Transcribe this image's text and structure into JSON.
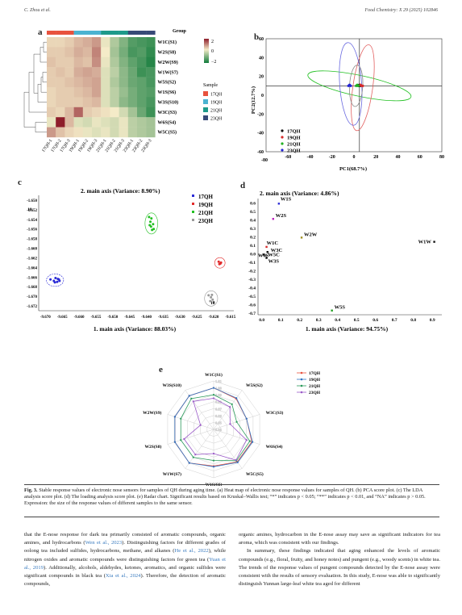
{
  "header": {
    "left": "C. Zhou et al.",
    "right": "Food Chemistry: X 29 (2025) 102846"
  },
  "panels": {
    "a": "a",
    "b": "b",
    "c": "c",
    "d": "d",
    "e": "e"
  },
  "heatmap": {
    "rows": [
      "W1C(S1)",
      "W2S(S8)",
      "W2W(S9)",
      "W1W(S7)",
      "W5S(S2)",
      "W1S(S6)",
      "W3S(S10)",
      "W3C(S3)",
      "W6S(S4)",
      "W5C(S5)"
    ],
    "cols": [
      "17QH-1",
      "17QH-2",
      "17QH-3",
      "19QH-1",
      "19QH-2",
      "19QH-3",
      "21QH-1",
      "21QH-2",
      "21QH-3",
      "23QH-1",
      "23QH-2",
      "23QH-3"
    ],
    "values": [
      [
        0.2,
        0.2,
        0.3,
        0.5,
        0.6,
        0.8,
        -0.1,
        -0.6,
        -1.0,
        -1.4,
        -1.5,
        -1.6
      ],
      [
        0.3,
        0.3,
        0.4,
        0.6,
        0.5,
        1.0,
        0.0,
        -0.7,
        -1.1,
        -1.5,
        -1.4,
        -1.7
      ],
      [
        0.4,
        0.3,
        0.3,
        0.5,
        0.4,
        0.9,
        -0.1,
        -0.6,
        -1.0,
        -1.3,
        -1.5,
        -1.8
      ],
      [
        0.3,
        0.4,
        0.3,
        0.6,
        0.7,
        0.6,
        -0.2,
        -0.5,
        -0.9,
        -1.2,
        -1.6,
        -1.5
      ],
      [
        0.3,
        0.3,
        0.4,
        0.5,
        0.6,
        0.7,
        -0.2,
        -0.6,
        -0.9,
        -1.2,
        -1.3,
        -1.5
      ],
      [
        0.2,
        0.3,
        0.3,
        0.4,
        0.5,
        0.7,
        -0.2,
        -0.5,
        -0.8,
        -1.1,
        -1.3,
        -1.4
      ],
      [
        0.2,
        0.3,
        0.3,
        0.3,
        0.4,
        0.5,
        -0.2,
        -0.5,
        -0.9,
        -1.1,
        -1.3,
        -1.5
      ],
      [
        0.3,
        0.2,
        0.5,
        1.3,
        0.3,
        0.2,
        0.1,
        0.0,
        -0.3,
        -0.7,
        -1.2,
        -1.6
      ],
      [
        -0.1,
        2.0,
        0.5,
        -0.2,
        -0.3,
        -0.1,
        -0.2,
        -0.3,
        -0.1,
        -0.5,
        -0.6,
        -0.7
      ],
      [
        0.8,
        0.4,
        0.2,
        0.1,
        -0.1,
        -0.2,
        -0.1,
        -0.3,
        -0.1,
        -0.5,
        -0.6,
        -0.7
      ]
    ],
    "group_label": "Group",
    "scale_labels": [
      "2",
      "0",
      "−2"
    ],
    "sample_label": "Sample",
    "legend": [
      {
        "name": "17QH",
        "color": "#e8523e"
      },
      {
        "name": "19QH",
        "color": "#4bb3d1"
      },
      {
        "name": "21QH",
        "color": "#1e9a8a"
      },
      {
        "name": "23QH",
        "color": "#384a77"
      }
    ]
  },
  "chart_data": [
    {
      "type": "scatter",
      "panel": "b",
      "xlabel": "PC1(68.7%)",
      "ylabel": "PC2(12.7%)",
      "xlim": [
        -80,
        80
      ],
      "ylim": [
        -60,
        60
      ],
      "xticks": [
        "-60",
        "-40",
        "-20",
        "0",
        "20",
        "40",
        "60",
        "80"
      ],
      "yticks": [
        "60",
        "40",
        "20",
        "0",
        "-20",
        "-40",
        "-60"
      ],
      "series": [
        {
          "name": "17QH",
          "color": "#111111",
          "points": [
            [
              4,
              10
            ],
            [
              5,
              11
            ],
            [
              6,
              10
            ]
          ]
        },
        {
          "name": "19QH",
          "color": "#d62a2a",
          "points": [
            [
              6,
              11
            ],
            [
              7,
              10
            ],
            [
              8,
              10
            ]
          ]
        },
        {
          "name": "21QH",
          "color": "#22b022",
          "points": [
            [
              2,
              10
            ],
            [
              3,
              11
            ],
            [
              4,
              10
            ]
          ]
        },
        {
          "name": "23QH",
          "color": "#2424d6",
          "points": [
            [
              -5,
              10
            ],
            [
              -4,
              11
            ],
            [
              -3,
              10
            ]
          ]
        }
      ]
    },
    {
      "type": "scatter",
      "panel": "c",
      "title": "2. main axis (Variance: 8.90%)",
      "xlabel": "1. main axis (Variance: 88.03%)",
      "xlim": [
        -9.672,
        -9.614
      ],
      "ylim": [
        -1.673,
        -1.649
      ],
      "xticks": [
        "-9.670",
        "-9.665",
        "-9.660",
        "-9.655",
        "-9.650",
        "-9.645",
        "-9.640",
        "-9.635",
        "-9.630",
        "-9.625",
        "-9.620",
        "-9.615"
      ],
      "yticks": [
        "-1.650",
        "-1.652",
        "-1.654",
        "-1.656",
        "-1.658",
        "-1.660",
        "-1.662",
        "-1.664",
        "-1.666",
        "-1.668",
        "-1.670",
        "-1.672"
      ],
      "y_exp": "10",
      "x_exp": "10",
      "series": [
        {
          "name": "17QH",
          "color": "#2a2ad6",
          "points": [
            [
              -9.6685,
              -1.6665
            ],
            [
              -9.6675,
              -1.6668
            ],
            [
              -9.667,
              -1.6662
            ],
            [
              -9.6665,
              -1.667
            ],
            [
              -9.666,
              -1.6665
            ],
            [
              -9.6658,
              -1.6668
            ],
            [
              -9.6672,
              -1.6671
            ],
            [
              -9.6663,
              -1.6664
            ]
          ]
        },
        {
          "name": "19QH",
          "color": "#e22a2a",
          "points": [
            [
              -9.6185,
              -1.6628
            ],
            [
              -9.618,
              -1.6632
            ],
            [
              -9.6178,
              -1.663
            ],
            [
              -9.6183,
              -1.6633
            ]
          ]
        },
        {
          "name": "21QH",
          "color": "#22c022",
          "points": [
            [
              -9.6392,
              -1.6535
            ],
            [
              -9.6385,
              -1.6538
            ],
            [
              -9.6388,
              -1.6545
            ],
            [
              -9.638,
              -1.655
            ],
            [
              -9.6386,
              -1.6555
            ],
            [
              -9.6378,
              -1.656
            ],
            [
              -9.6383,
              -1.6562
            ],
            [
              -9.639,
              -1.6552
            ]
          ]
        },
        {
          "name": "23QH",
          "color": "#999999",
          "points": [
            [
              -9.6215,
              -1.6698
            ],
            [
              -9.6208,
              -1.6702
            ],
            [
              -9.6203,
              -1.6707
            ],
            [
              -9.621,
              -1.671
            ],
            [
              -9.62,
              -1.6712
            ],
            [
              -9.6205,
              -1.6697
            ]
          ]
        }
      ]
    },
    {
      "type": "scatter",
      "panel": "d",
      "title": "2. main axis (Variance: 4.86%)",
      "xlabel": "1. main axis (Variance: 94.75%)",
      "xlim": [
        -0.02,
        0.95
      ],
      "ylim": [
        -0.72,
        0.65
      ],
      "xticks": [
        "0.0",
        "0.1",
        "0.2",
        "0.3",
        "0.4",
        "0.5",
        "0.6",
        "0.7",
        "0.8",
        "0.9"
      ],
      "yticks": [
        "0.6",
        "0.5",
        "0.4",
        "0.3",
        "0.2",
        "0.1",
        "0.0",
        "-0.1",
        "-0.2",
        "-0.3",
        "-0.4",
        "-0.5",
        "-0.6",
        "-0.7"
      ],
      "points": [
        {
          "label": "W1S",
          "x": 0.09,
          "y": 0.59,
          "color": "#2a2ad6"
        },
        {
          "label": "W2S",
          "x": 0.06,
          "y": 0.41,
          "color": "#c020c0"
        },
        {
          "label": "W2W",
          "x": 0.21,
          "y": 0.19,
          "color": "#a09020"
        },
        {
          "label": "W1W",
          "x": 0.91,
          "y": 0.14,
          "color": "#111111"
        },
        {
          "label": "W1C",
          "x": 0.025,
          "y": 0.08,
          "color": "#d62a2a"
        },
        {
          "label": "W3C",
          "x": 0.03,
          "y": 0.02,
          "color": "#111111"
        },
        {
          "label": "W6S",
          "x": 0.01,
          "y": -0.01,
          "color": "#111111"
        },
        {
          "label": "W5C",
          "x": 0.02,
          "y": -0.02,
          "color": "#555555"
        },
        {
          "label": "W3S",
          "x": 0.025,
          "y": -0.05,
          "color": "#111111"
        },
        {
          "label": "W5S",
          "x": 0.37,
          "y": -0.67,
          "color": "#22a022"
        }
      ]
    },
    {
      "type": "radar",
      "panel": "e",
      "axes": [
        "W1C(S1)",
        "W5S(S2)",
        "W3C(S3)",
        "W6S(S4)",
        "W5C(S5)",
        "W1S(S6)",
        "W1W(S7)",
        "W2S(S8)",
        "W2W(S9)",
        "W3S(S10)"
      ],
      "rlim": [
        0.94,
        1.01
      ],
      "rticks": [
        "1.01",
        "1.00",
        "0.99",
        "0.98",
        "0.97",
        "0.96",
        "0.95",
        "0.94"
      ],
      "series": [
        {
          "name": "17QH",
          "color": "#e8523e",
          "marker": "square",
          "values": [
            1.0,
            0.995,
            0.99,
            0.998,
            0.998,
            0.993,
            1.0,
            0.999,
            0.999,
            1.0
          ]
        },
        {
          "name": "19QH",
          "color": "#2f74c4",
          "marker": "circle",
          "values": [
            1.0,
            0.996,
            0.99,
            0.999,
            0.999,
            0.994,
            1.0,
            0.999,
            0.999,
            1.0
          ]
        },
        {
          "name": "21QH",
          "color": "#2a9a5a",
          "marker": "triangle",
          "values": [
            0.99,
            0.985,
            0.975,
            0.995,
            0.996,
            0.985,
            0.99,
            0.99,
            0.99,
            0.995
          ]
        },
        {
          "name": "23QH",
          "color": "#9a5ac8",
          "marker": "triangle-down",
          "values": [
            0.985,
            0.98,
            0.965,
            0.99,
            0.995,
            0.975,
            0.985,
            0.985,
            0.96,
            0.99
          ]
        }
      ]
    }
  ],
  "caption": {
    "label": "Fig. 3.",
    "text": " Stable response values of electronic nose sensors for samples of QH during aging time. (a) Heat map of electronic nose response values for samples of QH. (b) PCA score plot. (c) The LDA analysis score plot. (d) The loading analysis score plot. (e) Radar chart. Significant results based on Kruskal–Wallis test; “*” indicates p < 0.05; “**” indicates p < 0.01, and “NA” indicates p > 0.05. Expression: the size of the response values of different samples to the same sensor."
  },
  "body": {
    "left": [
      {
        "t": "that the E-nose response for dark tea primarily consisted of aromatic compounds, organic amines, and hydrocarbons ("
      },
      {
        "t": "Wen et al., 2023",
        "link": true
      },
      {
        "t": "). Distinguishing factors for different grades of oolong tea included sulfides, hydrocarbons, methane, and alkanes ("
      },
      {
        "t": "He et al., 2022",
        "link": true
      },
      {
        "t": "), while nitrogen oxides and aromatic compounds were distinguishing factors for green tea ("
      },
      {
        "t": "Yuan et al., 2019",
        "link": true
      },
      {
        "t": "). Additionally, alcohols, aldehydes, ketones, aromatics, and organic sulfides were significant compounds in black tea ("
      },
      {
        "t": "Xia et al., 2024",
        "link": true
      },
      {
        "t": "). Therefore, the detection of aromatic compounds,"
      }
    ],
    "right_p1": "organic amines, hydrocarbon in the E-nose assay may save as significant indicators for tea aroma, which was consistent with our findings.",
    "right_p2": "In summary, these findings indicated that aging enhanced the levels of aromatic compounds (e.g., floral, fruity, and honey notes) and pungent (e.g., woody scents) in white tea. The trends of the response values of pungent compounds detected by the E-nose assay were consistent with the results of sensory evaluation. In this study, E-nose was able to significantly distinguish Yunnan large-leaf white tea aged for different"
  }
}
